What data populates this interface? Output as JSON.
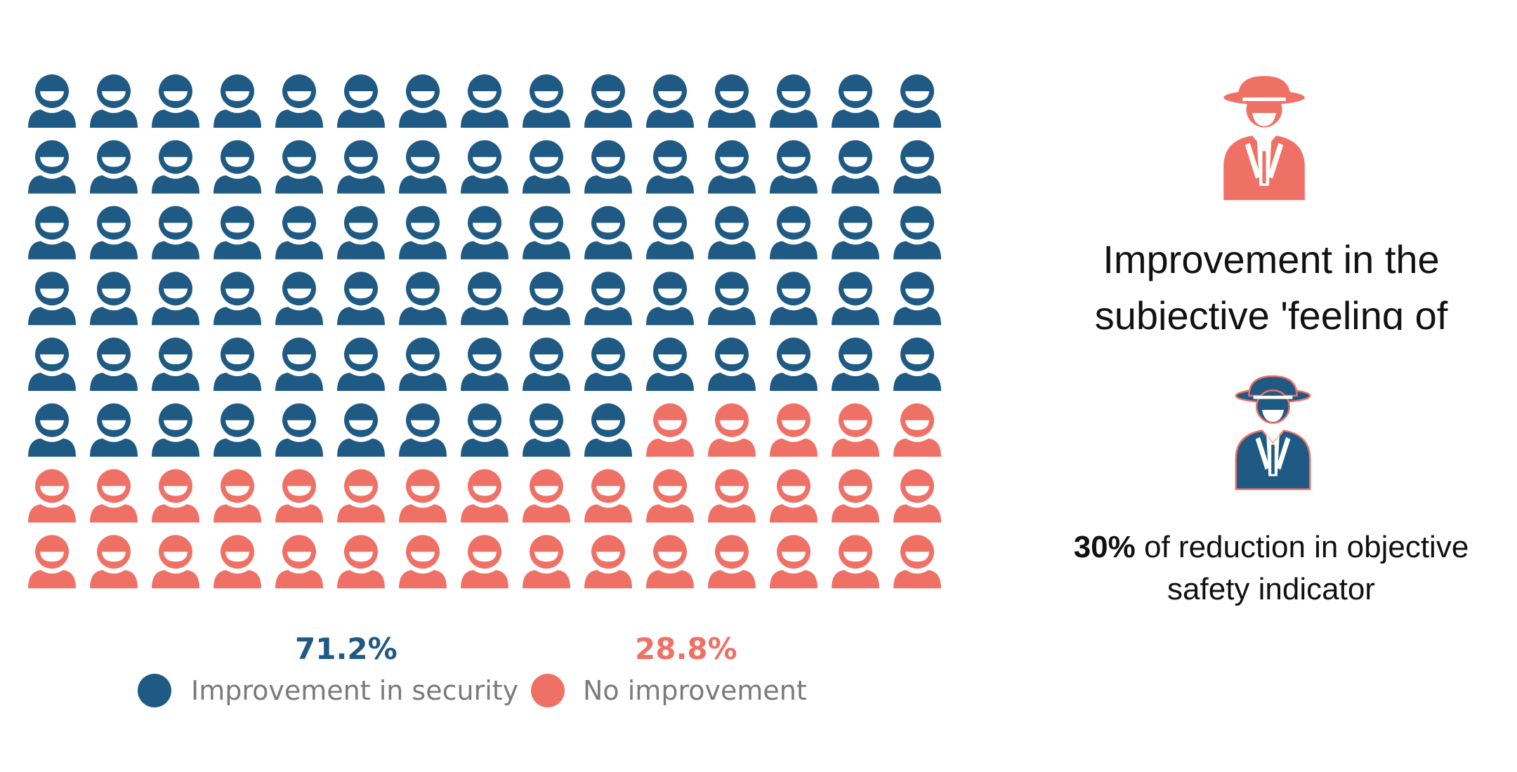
{
  "chart_data": {
    "type": "pictogram",
    "rows": 8,
    "columns": 15,
    "total_icons": 120,
    "series": [
      {
        "name": "Improvement in security",
        "percent": 71.2,
        "percent_label": "71.2%",
        "icon_count": 85,
        "color": "#1e5a83"
      },
      {
        "name": "No improvement",
        "percent": 28.8,
        "percent_label": "28.8%",
        "icon_count": 35,
        "color": "#ef7166"
      }
    ],
    "fill_order": "row-major, left to right, top to bottom"
  },
  "side_panel": {
    "headline": "Improvement in the subjective 'feeling of security'",
    "headline_icon": "spy-icon",
    "headline_icon_color": "#ef7166",
    "stat_strong": "30%",
    "stat_rest": " of reduction in objective safety indicator",
    "stat_icon": "spy-icon",
    "stat_icon_color": "#1e5a83",
    "stat_icon_outline": "#ef7166"
  }
}
